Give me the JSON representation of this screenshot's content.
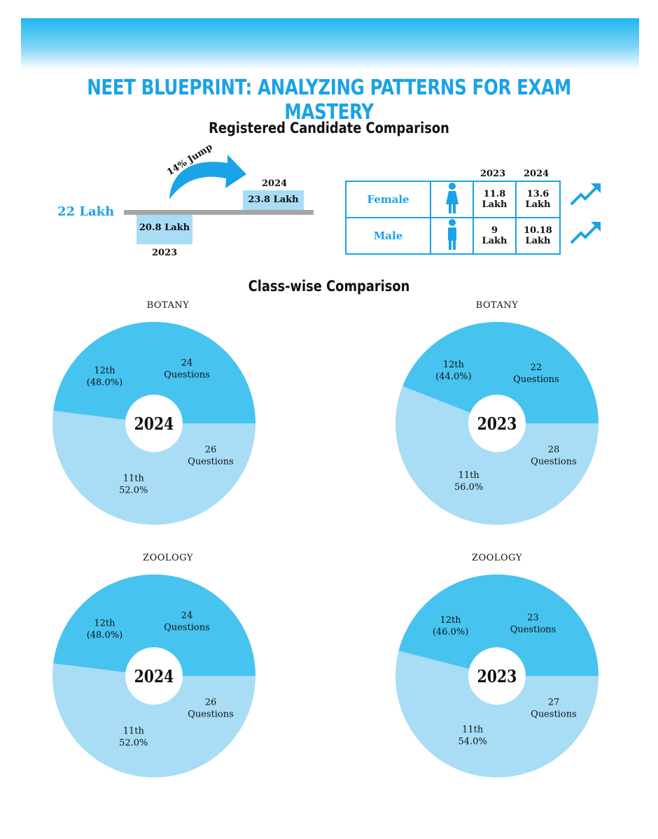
{
  "header": {
    "title": "NEET BLUEPRINT: ANALYZING PATTERNS FOR EXAM MASTERY"
  },
  "registration": {
    "title": "Registered Candidate Comparison",
    "baseline_label": "22 Lakh",
    "jump_label": "14% Jump",
    "years": [
      {
        "year": "2023",
        "label": "20.8 Lakh",
        "value": 20.8
      },
      {
        "year": "2024",
        "label": "23.8 Lakh",
        "value": 23.8
      }
    ]
  },
  "gender_table": {
    "headers": [
      "2023",
      "2024"
    ],
    "rows": [
      {
        "label": "Female",
        "v2023": "11.8\nLakh",
        "v2024": "13.6\nLakh",
        "icon": "female-icon",
        "trend_icon": "trend-up-icon"
      },
      {
        "label": "Male",
        "v2023": "9\nLakh",
        "v2024": "10.18\nLakh",
        "icon": "male-icon",
        "trend_icon": "trend-up-icon"
      }
    ]
  },
  "classwise": {
    "title": "Class-wise Comparison"
  },
  "colors": {
    "accent": "#1aa3e6",
    "dark_slice": "#47c3f0",
    "light_slice": "#a8ddf5"
  },
  "chart_data": [
    {
      "type": "pie",
      "title": "BOTANY",
      "center_label": "2024",
      "slices": [
        {
          "label": "12th",
          "pct_label": "(48.0%)",
          "value": 48.0,
          "questions": 24,
          "questions_label": "Questions"
        },
        {
          "label": "11th",
          "pct_label": "52.0%",
          "value": 52.0,
          "questions": 26,
          "questions_label": "Questions"
        }
      ]
    },
    {
      "type": "pie",
      "title": "BOTANY",
      "center_label": "2023",
      "slices": [
        {
          "label": "12th",
          "pct_label": "(44.0%)",
          "value": 44.0,
          "questions": 22,
          "questions_label": "Questions"
        },
        {
          "label": "11th",
          "pct_label": "56.0%",
          "value": 56.0,
          "questions": 28,
          "questions_label": "Questions"
        }
      ]
    },
    {
      "type": "pie",
      "title": "ZOOLOGY",
      "center_label": "2024",
      "slices": [
        {
          "label": "12th",
          "pct_label": "(48.0%)",
          "value": 48.0,
          "questions": 24,
          "questions_label": "Questions"
        },
        {
          "label": "11th",
          "pct_label": "52.0%",
          "value": 52.0,
          "questions": 26,
          "questions_label": "Questions"
        }
      ]
    },
    {
      "type": "pie",
      "title": "ZOOLOGY",
      "center_label": "2023",
      "slices": [
        {
          "label": "12th",
          "pct_label": "(46.0%)",
          "value": 46.0,
          "questions": 23,
          "questions_label": "Questions"
        },
        {
          "label": "11th",
          "pct_label": "54.0%",
          "value": 54.0,
          "questions": 27,
          "questions_label": "Questions"
        }
      ]
    }
  ]
}
